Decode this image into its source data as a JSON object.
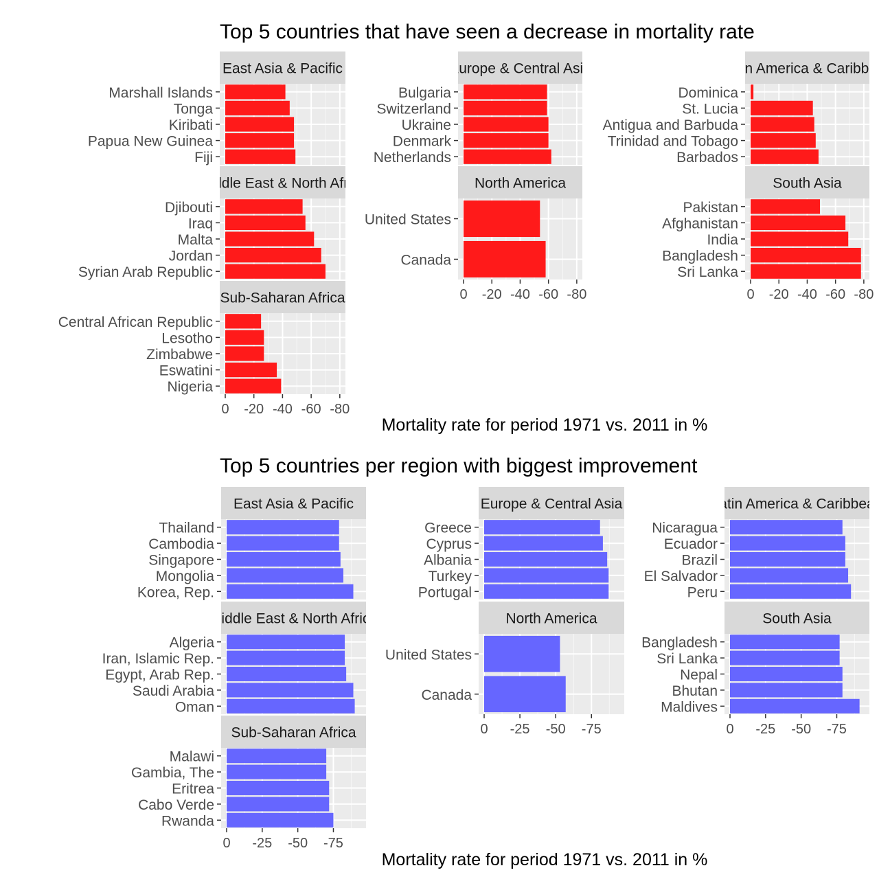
{
  "chart_data": [
    {
      "type": "bar",
      "orientation": "horizontal",
      "title": "Top 5 countries that have seen a decrease in  mortality rate",
      "xlabel": "Mortality rate for period 1971 vs. 2011 in %",
      "bar_color": "#FF1A1A",
      "xlim": [
        0,
        -82
      ],
      "ticks": [
        0,
        -20,
        -40,
        -60,
        -80
      ],
      "tick_labels": [
        "0",
        "-20",
        "-40",
        "-60",
        "-80"
      ],
      "facets": [
        {
          "label": "East Asia & Pacific",
          "categories": [
            "Marshall Islands",
            "Tonga",
            "Kiribati",
            "Papua New Guinea",
            "Fiji"
          ],
          "values": [
            -42,
            -45,
            -48,
            -48,
            -49
          ]
        },
        {
          "label": "Europe & Central Asia",
          "categories": [
            "Bulgaria",
            "Switzerland",
            "Ukraine",
            "Denmark",
            "Netherlands"
          ],
          "values": [
            -59,
            -59,
            -60,
            -60,
            -62
          ]
        },
        {
          "label": "Latin America & Caribbean",
          "categories": [
            "Dominica",
            "St. Lucia",
            "Antigua and Barbuda",
            "Trinidad and Tobago",
            "Barbados"
          ],
          "values": [
            -2,
            -44,
            -45,
            -46,
            -48
          ]
        },
        {
          "label": "Middle East & North Africa",
          "categories": [
            "Djibouti",
            "Iraq",
            "Malta",
            "Jordan",
            "Syrian Arab Republic"
          ],
          "values": [
            -54,
            -56,
            -62,
            -67,
            -70
          ]
        },
        {
          "label": "North America",
          "categories": [
            "United States",
            "Canada"
          ],
          "values": [
            -54,
            -58
          ]
        },
        {
          "label": "South Asia",
          "categories": [
            "Pakistan",
            "Afghanistan",
            "India",
            "Bangladesh",
            "Sri Lanka"
          ],
          "values": [
            -49,
            -67,
            -69,
            -78,
            -78
          ]
        },
        {
          "label": "Sub-Saharan Africa",
          "categories": [
            "Central African Republic",
            "Lesotho",
            "Zimbabwe",
            "Eswatini",
            "Nigeria"
          ],
          "values": [
            -25,
            -27,
            -27,
            -36,
            -39
          ]
        }
      ]
    },
    {
      "type": "bar",
      "orientation": "horizontal",
      "title": "Top 5 countries per region with biggest improvement",
      "xlabel": "Mortality rate for period 1971 vs. 2011 in %",
      "bar_color": "#6666FF",
      "xlim": [
        0,
        -96
      ],
      "ticks": [
        0,
        -25,
        -50,
        -75
      ],
      "tick_labels": [
        "0",
        "-25",
        "-50",
        "-75"
      ],
      "facets": [
        {
          "label": "East Asia & Pacific",
          "categories": [
            "Thailand",
            "Cambodia",
            "Singapore",
            "Mongolia",
            "Korea, Rep."
          ],
          "values": [
            -79,
            -79,
            -80,
            -82,
            -89
          ]
        },
        {
          "label": "Europe & Central Asia",
          "categories": [
            "Greece",
            "Cyprus",
            "Albania",
            "Turkey",
            "Portugal"
          ],
          "values": [
            -81,
            -83,
            -86,
            -87,
            -87
          ]
        },
        {
          "label": "Latin America & Caribbean",
          "categories": [
            "Nicaragua",
            "Ecuador",
            "Brazil",
            "El Salvador",
            "Peru"
          ],
          "values": [
            -79,
            -81,
            -81,
            -83,
            -85
          ]
        },
        {
          "label": "Middle East & North Africa",
          "categories": [
            "Algeria",
            "Iran, Islamic Rep.",
            "Egypt, Arab Rep.",
            "Saudi Arabia",
            "Oman"
          ],
          "values": [
            -83,
            -83,
            -84,
            -89,
            -90
          ]
        },
        {
          "label": "North America",
          "categories": [
            "United States",
            "Canada"
          ],
          "values": [
            -53,
            -57
          ]
        },
        {
          "label": "South Asia",
          "categories": [
            "Bangladesh",
            "Sri Lanka",
            "Nepal",
            "Bhutan",
            "Maldives"
          ],
          "values": [
            -77,
            -77,
            -79,
            -79,
            -91
          ]
        },
        {
          "label": "Sub-Saharan Africa",
          "categories": [
            "Malawi",
            "Gambia, The",
            "Eritrea",
            "Cabo Verde",
            "Rwanda"
          ],
          "values": [
            -70,
            -70,
            -72,
            -72,
            -75
          ]
        }
      ]
    }
  ]
}
